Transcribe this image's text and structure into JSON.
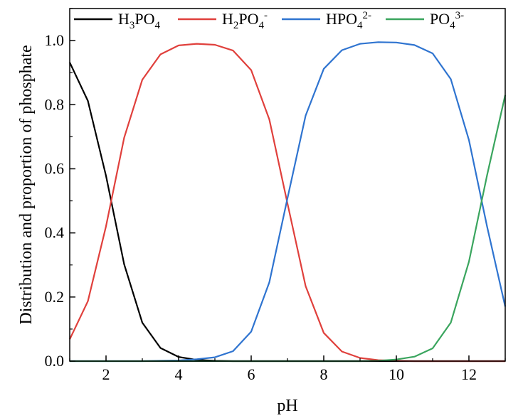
{
  "chart_data": {
    "type": "line",
    "title": "",
    "xlabel": "pH",
    "ylabel": "Distribution and proportion of phosphate",
    "xlim": [
      1,
      13
    ],
    "ylim": [
      0,
      1.1
    ],
    "xticks": [
      2,
      4,
      6,
      8,
      10,
      12
    ],
    "yticks": [
      0.0,
      0.2,
      0.4,
      0.6,
      0.8,
      1.0
    ],
    "xtick_labels": [
      "2",
      "4",
      "6",
      "8",
      "10",
      "12"
    ],
    "ytick_labels": [
      "0.0",
      "0.2",
      "0.4",
      "0.6",
      "0.8",
      "1.0"
    ],
    "grid": false,
    "legend_position": "top",
    "x": [
      1,
      1.5,
      2,
      2.5,
      3,
      3.5,
      4,
      4.5,
      5,
      5.5,
      6,
      6.5,
      7,
      7.5,
      8,
      8.5,
      9,
      9.5,
      10,
      10.5,
      11,
      11.5,
      12,
      12.5,
      13
    ],
    "series": [
      {
        "name": "H3PO4",
        "legend": {
          "base": "H",
          "sub1": "3",
          "mid": "PO",
          "sub2": "4",
          "sup": ""
        },
        "color": "#000000",
        "values": [
          0.932,
          0.812,
          0.578,
          0.302,
          0.12,
          0.041,
          0.013,
          0.004,
          0.001,
          0.0,
          0.0,
          0.0,
          0.0,
          0.0,
          0.0,
          0.0,
          0.0,
          0.0,
          0.0,
          0.0,
          0.0,
          0.0,
          0.0,
          0.0,
          0.0
        ]
      },
      {
        "name": "H2PO4-",
        "legend": {
          "base": "H",
          "sub1": "2",
          "mid": "PO",
          "sub2": "4",
          "sup": "-"
        },
        "color": "#e0403c",
        "values": [
          0.068,
          0.187,
          0.421,
          0.697,
          0.878,
          0.957,
          0.985,
          0.99,
          0.987,
          0.969,
          0.908,
          0.754,
          0.492,
          0.234,
          0.088,
          0.03,
          0.01,
          0.003,
          0.001,
          0.0,
          0.0,
          0.0,
          0.0,
          0.0,
          0.0
        ]
      },
      {
        "name": "HPO42-",
        "legend": {
          "base": "",
          "sub1": "",
          "mid": "HPO",
          "sub2": "4",
          "sup": "2-"
        },
        "color": "#2f74d0",
        "values": [
          0.0,
          0.0,
          0.0,
          0.0,
          0.0,
          0.001,
          0.002,
          0.006,
          0.012,
          0.031,
          0.092,
          0.246,
          0.508,
          0.766,
          0.912,
          0.97,
          0.99,
          0.995,
          0.994,
          0.986,
          0.96,
          0.88,
          0.69,
          0.42,
          0.17
        ]
      },
      {
        "name": "PO43-",
        "legend": {
          "base": "",
          "sub1": "",
          "mid": "PO",
          "sub2": "4",
          "sup": "3-"
        },
        "color": "#3aa55e",
        "values": [
          0.0,
          0.0,
          0.0,
          0.0,
          0.0,
          0.0,
          0.0,
          0.0,
          0.0,
          0.0,
          0.0,
          0.0,
          0.0,
          0.0,
          0.0,
          0.0,
          0.0,
          0.001,
          0.005,
          0.014,
          0.04,
          0.12,
          0.31,
          0.58,
          0.83
        ]
      }
    ]
  }
}
